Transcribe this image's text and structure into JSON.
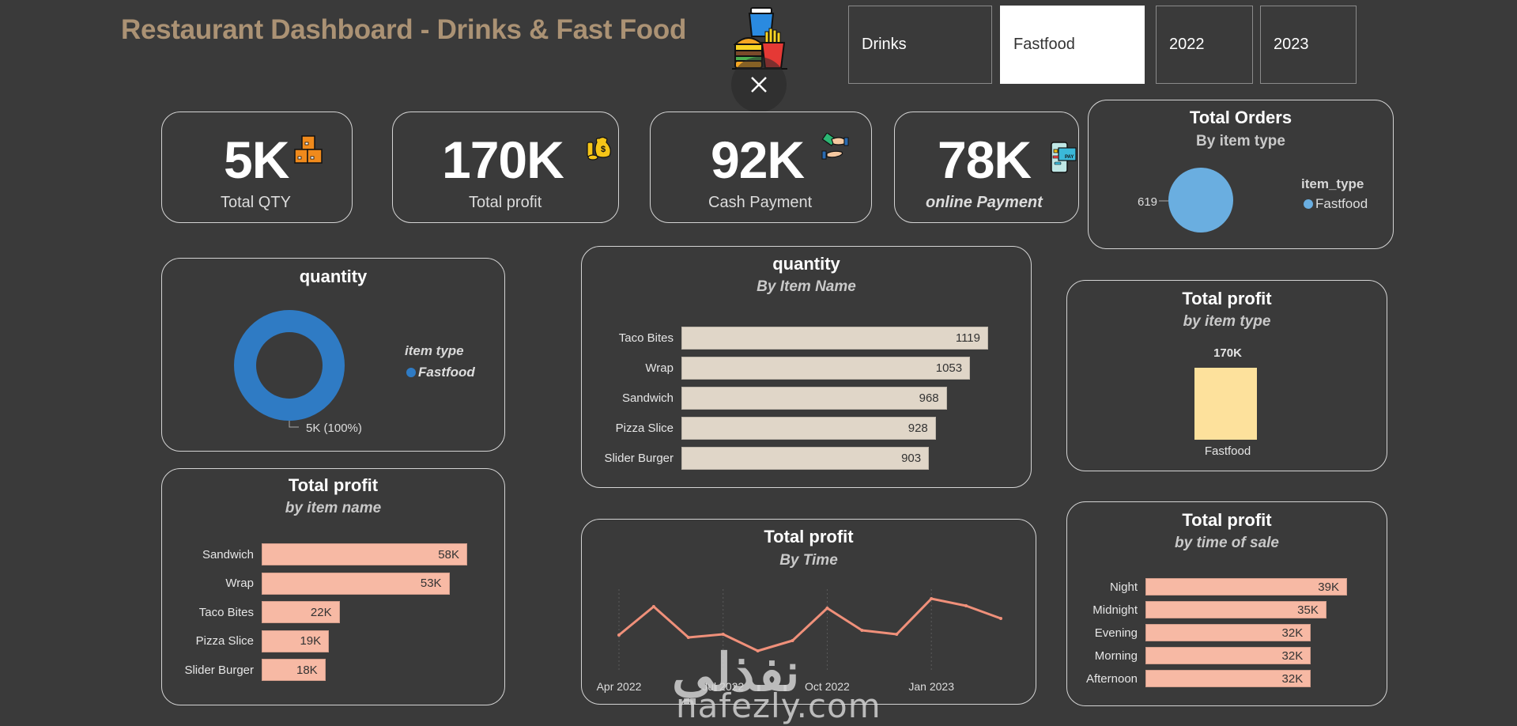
{
  "header": {
    "title": "Restaurant Dashboard - Drinks & Fast Food",
    "logo_icon": "fastfood-logo-icon",
    "close_icon": "close-icon"
  },
  "slicers": {
    "item_type": [
      {
        "label": "Drinks",
        "selected": false
      },
      {
        "label": "Fastfood",
        "selected": true
      }
    ],
    "year": [
      {
        "label": "2022",
        "selected": false
      },
      {
        "label": "2023",
        "selected": false
      }
    ]
  },
  "kpis": [
    {
      "value": "5K",
      "label": "Total QTY",
      "icon": "boxes-icon"
    },
    {
      "value": "170K",
      "label": "Total profit",
      "icon": "money-bag-icon"
    },
    {
      "value": "92K",
      "label": "Cash Payment",
      "icon": "cash-hand-icon"
    },
    {
      "value": "78K",
      "label": "online Payment",
      "icon": "mobile-pay-icon"
    }
  ],
  "colors": {
    "background": "#3a3a3a",
    "title": "#ab9274",
    "donut": "#2f7bc4",
    "pie": "#6aaee0",
    "qty_bar": "#e0d6c8",
    "profit_bar": "#f7b9a4",
    "type_bar": "#fde19c",
    "line": "#f0907a"
  },
  "chart_data": [
    {
      "id": "orders_by_type",
      "type": "pie",
      "title": "Total Orders",
      "subtitle": "By item type",
      "legend_title": "item_type",
      "legend_position": "right",
      "categories": [
        "Fastfood"
      ],
      "values": [
        619
      ],
      "data_labels": [
        "619"
      ]
    },
    {
      "id": "quantity_donut",
      "type": "pie",
      "title": "quantity",
      "legend_title": "item type",
      "legend_position": "right",
      "categories": [
        "Fastfood"
      ],
      "values": [
        5000
      ],
      "data_labels": [
        "5K (100%)"
      ]
    },
    {
      "id": "quantity_by_item",
      "type": "bar",
      "orientation": "horizontal",
      "title": "quantity",
      "subtitle": "By Item Name",
      "categories": [
        "Taco Bites",
        "Wrap",
        "Sandwich",
        "Pizza Slice",
        "Slider Burger"
      ],
      "values": [
        1119,
        1053,
        968,
        928,
        903
      ],
      "data_labels": [
        "1119",
        "1053",
        "968",
        "928",
        "903"
      ],
      "xlim": [
        0,
        1119
      ]
    },
    {
      "id": "profit_by_type",
      "type": "bar",
      "title": "Total profit",
      "subtitle": "by item type",
      "categories": [
        "Fastfood"
      ],
      "values": [
        170000
      ],
      "data_labels": [
        "170K"
      ]
    },
    {
      "id": "profit_by_item",
      "type": "bar",
      "orientation": "horizontal",
      "title": "Total profit",
      "subtitle": "by item name",
      "categories": [
        "Sandwich",
        "Wrap",
        "Taco Bites",
        "Pizza Slice",
        "Slider Burger"
      ],
      "values": [
        58000,
        53000,
        22000,
        19000,
        18000
      ],
      "data_labels": [
        "58K",
        "53K",
        "22K",
        "19K",
        "18K"
      ],
      "xlim": [
        0,
        58000
      ]
    },
    {
      "id": "profit_by_time",
      "type": "line",
      "title": "Total profit",
      "subtitle": "By Time",
      "x": [
        "Apr 2022",
        "May 2022",
        "Jun 2022",
        "Jul 2022",
        "Aug 2022",
        "Sep 2022",
        "Oct 2022",
        "Nov 2022",
        "Dec 2022",
        "Jan 2023",
        "Feb 2023",
        "Mar 2023"
      ],
      "values": [
        12.9,
        16.5,
        12.6,
        13.0,
        10.9,
        12.2,
        16.3,
        13.5,
        13.0,
        17.5,
        16.6,
        15.0
      ],
      "value_unit": "K (estimated, no y-axis shown)",
      "tick_labels": [
        "Apr 2022",
        "Jul 2022",
        "Oct 2022",
        "Jan 2023"
      ],
      "ylim": [
        9,
        19
      ],
      "grid": "vertical dotted"
    },
    {
      "id": "profit_by_time_of_sale",
      "type": "bar",
      "orientation": "horizontal",
      "title": "Total profit",
      "subtitle": "by time of sale",
      "categories": [
        "Night",
        "Midnight",
        "Evening",
        "Morning",
        "Afternoon"
      ],
      "values": [
        39000,
        35000,
        32000,
        32000,
        32000
      ],
      "data_labels": [
        "39K",
        "35K",
        "32K",
        "32K",
        "32K"
      ],
      "xlim": [
        0,
        39000
      ]
    }
  ],
  "watermark": {
    "arabic": "نفذلي",
    "latin": "nafezly.com"
  }
}
